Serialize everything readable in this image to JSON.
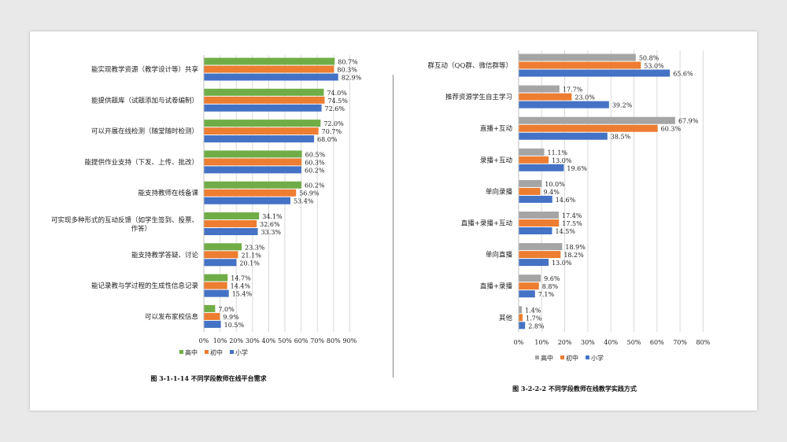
{
  "chart_data": [
    {
      "type": "bar",
      "orientation": "horizontal",
      "title": "图 3-1-1-14  不同学段教师在线平台需求",
      "categories": [
        "能实现教学资源（教学设计等）共享",
        "能提供题库（试题添加与试卷编制）",
        "可以开展在线检测（随堂随时检测）",
        "能提供作业支持（下发、上传、批改）",
        "能支持教师在线备课",
        "可实现多种形式的互动反馈（如学生签到、投票、作答）",
        "能支持教学答疑、讨论",
        "能记录教与学过程的生成性信息记录",
        "可以发布家校信息"
      ],
      "series": [
        {
          "name": "高中",
          "color": "#70ad47",
          "values": [
            80.7,
            74.0,
            72.0,
            60.5,
            60.2,
            34.1,
            23.3,
            14.7,
            7.0
          ]
        },
        {
          "name": "初中",
          "color": "#ed7d31",
          "values": [
            80.3,
            74.5,
            70.7,
            60.3,
            56.9,
            32.6,
            21.1,
            14.4,
            9.9
          ]
        },
        {
          "name": "小学",
          "color": "#4472c4",
          "values": [
            82.9,
            72.6,
            68.0,
            60.2,
            53.4,
            33.3,
            20.1,
            15.4,
            10.5
          ]
        }
      ],
      "xlim": [
        0,
        90
      ],
      "xticks": [
        "0%",
        "10%",
        "20%",
        "30%",
        "40%",
        "50%",
        "60%",
        "70%",
        "80%",
        "90%"
      ],
      "grid": true,
      "legend": "bottom"
    },
    {
      "type": "bar",
      "orientation": "horizontal",
      "title": "图 3-2-2-2  不同学段教师在线教学实践方式",
      "categories": [
        "群互动（QQ群、微信群等）",
        "推荐资源学生自主学习",
        "直播+互动",
        "录播+互动",
        "单向录播",
        "直播+录播+互动",
        "单向直播",
        "直播+录播",
        "其他"
      ],
      "series": [
        {
          "name": "高中",
          "color": "#a5a5a5",
          "values": [
            50.8,
            17.7,
            67.9,
            11.1,
            10.0,
            17.4,
            18.9,
            9.6,
            1.4
          ]
        },
        {
          "name": "初中",
          "color": "#ed7d31",
          "values": [
            53.0,
            23.0,
            60.3,
            13.0,
            9.4,
            17.5,
            18.2,
            8.8,
            1.7
          ]
        },
        {
          "name": "小学",
          "color": "#4472c4",
          "values": [
            65.6,
            39.2,
            38.5,
            19.6,
            14.6,
            14.5,
            13.0,
            7.1,
            2.8
          ]
        }
      ],
      "xlim": [
        0,
        80
      ],
      "xticks": [
        "0%",
        "10%",
        "20%",
        "30%",
        "40%",
        "50%",
        "60%",
        "70%",
        "80%"
      ],
      "grid": true,
      "legend": "bottom"
    }
  ]
}
